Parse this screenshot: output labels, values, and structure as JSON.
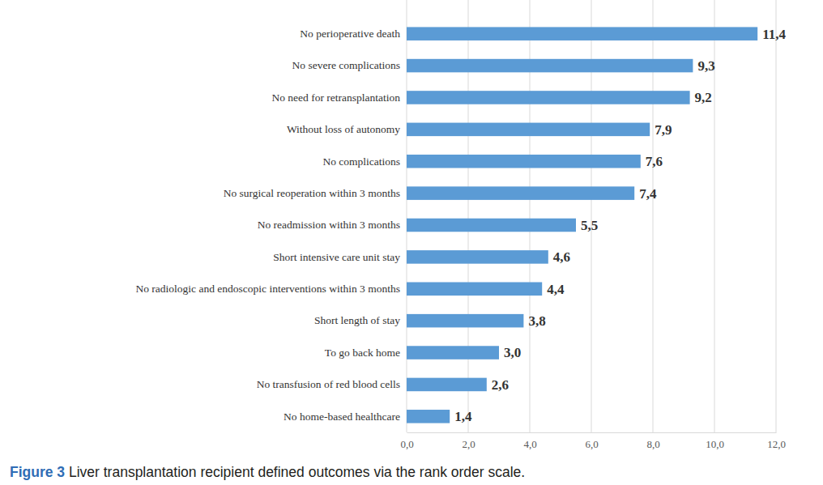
{
  "chart_data": {
    "type": "bar",
    "title": "Figure 3 Liver transplantation recipient defined outcomes via the rank order scale.",
    "orientation": "horizontal",
    "categories": [
      "No perioperative death",
      "No severe complications",
      "No need for retransplantation",
      "Without loss of autonomy",
      "No complications",
      "No surgical reoperation within 3 months",
      "No readmission within 3 months",
      "Short intensive care unit stay",
      "No radiologic and endoscopic interventions within 3 months",
      "Short length of stay",
      "To go back home",
      "No transfusion of red blood cells",
      "No home-based healthcare"
    ],
    "values": [
      11.4,
      9.3,
      9.2,
      7.9,
      7.6,
      7.4,
      5.5,
      4.6,
      4.4,
      3.8,
      3.0,
      2.6,
      1.4
    ],
    "value_labels": [
      "11,4",
      "9,3",
      "9,2",
      "7,9",
      "7,6",
      "7,4",
      "5,5",
      "4,6",
      "4,4",
      "3,8",
      "3,0",
      "2,6",
      "1,4"
    ],
    "color": "#5b9bd5",
    "xlim": [
      0,
      12
    ],
    "xticks": [
      {
        "value": 0,
        "label": "0,0"
      },
      {
        "value": 2,
        "label": "2,0"
      },
      {
        "value": 4,
        "label": "4,0"
      },
      {
        "value": 6,
        "label": "6,0"
      },
      {
        "value": 8,
        "label": "8,0"
      },
      {
        "value": 10,
        "label": "10,0"
      },
      {
        "value": 12,
        "label": "12,0"
      }
    ],
    "grid": true,
    "data_labels": true
  }
}
